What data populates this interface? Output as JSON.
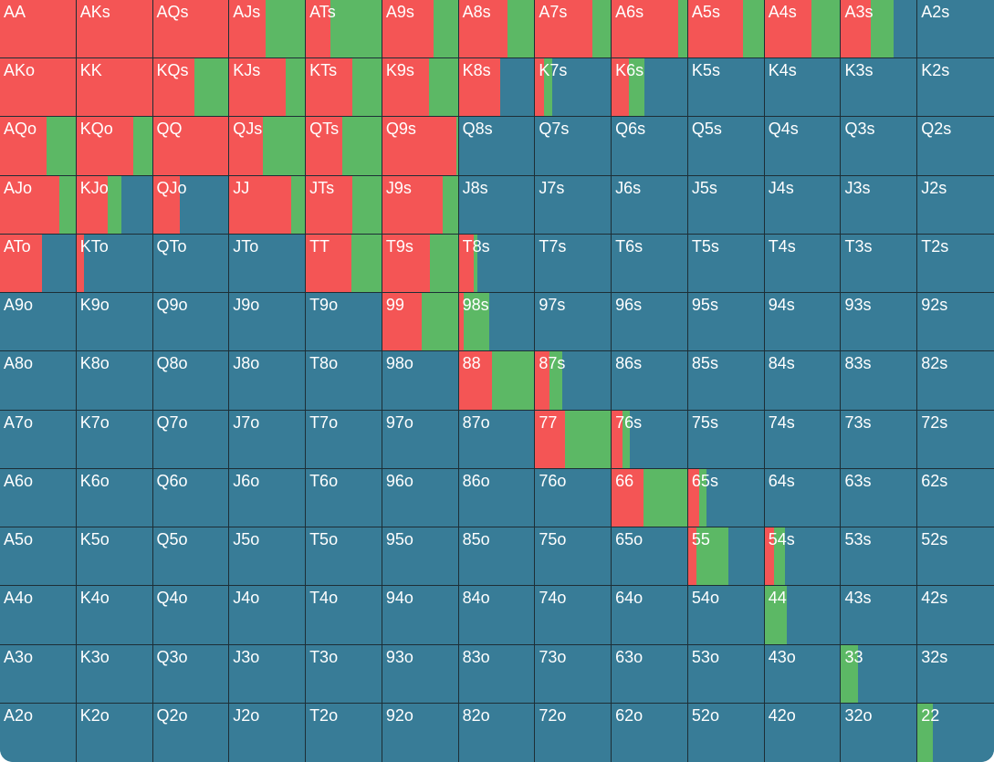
{
  "colors": {
    "raise": "#f45555",
    "call": "#5cb865",
    "fold": "#387c97"
  },
  "hands": [
    [
      "AA",
      "AKs",
      "AQs",
      "AJs",
      "ATs",
      "A9s",
      "A8s",
      "A7s",
      "A6s",
      "A5s",
      "A4s",
      "A3s",
      "A2s"
    ],
    [
      "AKo",
      "KK",
      "KQs",
      "KJs",
      "KTs",
      "K9s",
      "K8s",
      "K7s",
      "K6s",
      "K5s",
      "K4s",
      "K3s",
      "K2s"
    ],
    [
      "AQo",
      "KQo",
      "QQ",
      "QJs",
      "QTs",
      "Q9s",
      "Q8s",
      "Q7s",
      "Q6s",
      "Q5s",
      "Q4s",
      "Q3s",
      "Q2s"
    ],
    [
      "AJo",
      "KJo",
      "QJo",
      "JJ",
      "JTs",
      "J9s",
      "J8s",
      "J7s",
      "J6s",
      "J5s",
      "J4s",
      "J3s",
      "J2s"
    ],
    [
      "ATo",
      "KTo",
      "QTo",
      "JTo",
      "TT",
      "T9s",
      "T8s",
      "T7s",
      "T6s",
      "T5s",
      "T4s",
      "T3s",
      "T2s"
    ],
    [
      "A9o",
      "K9o",
      "Q9o",
      "J9o",
      "T9o",
      "99",
      "98s",
      "97s",
      "96s",
      "95s",
      "94s",
      "93s",
      "92s"
    ],
    [
      "A8o",
      "K8o",
      "Q8o",
      "J8o",
      "T8o",
      "98o",
      "88",
      "87s",
      "86s",
      "85s",
      "84s",
      "83s",
      "82s"
    ],
    [
      "A7o",
      "K7o",
      "Q7o",
      "J7o",
      "T7o",
      "97o",
      "87o",
      "77",
      "76s",
      "75s",
      "74s",
      "73s",
      "72s"
    ],
    [
      "A6o",
      "K6o",
      "Q6o",
      "J6o",
      "T6o",
      "96o",
      "86o",
      "76o",
      "66",
      "65s",
      "64s",
      "63s",
      "62s"
    ],
    [
      "A5o",
      "K5o",
      "Q5o",
      "J5o",
      "T5o",
      "95o",
      "85o",
      "75o",
      "65o",
      "55",
      "54s",
      "53s",
      "52s"
    ],
    [
      "A4o",
      "K4o",
      "Q4o",
      "J4o",
      "T4o",
      "94o",
      "84o",
      "74o",
      "64o",
      "54o",
      "44",
      "43s",
      "42s"
    ],
    [
      "A3o",
      "K3o",
      "Q3o",
      "J3o",
      "T3o",
      "93o",
      "83o",
      "73o",
      "63o",
      "53o",
      "43o",
      "33",
      "32s"
    ],
    [
      "A2o",
      "K2o",
      "Q2o",
      "J2o",
      "T2o",
      "92o",
      "82o",
      "72o",
      "62o",
      "52o",
      "42o",
      "32o",
      "22"
    ]
  ],
  "frequencies": {
    "AA": {
      "raise": 1.0,
      "call": 0.0
    },
    "AKs": {
      "raise": 1.0,
      "call": 0.0
    },
    "AQs": {
      "raise": 1.0,
      "call": 0.0
    },
    "AJs": {
      "raise": 0.48,
      "call": 0.52
    },
    "ATs": {
      "raise": 0.33,
      "call": 0.67
    },
    "A9s": {
      "raise": 0.68,
      "call": 0.32
    },
    "A8s": {
      "raise": 0.65,
      "call": 0.35
    },
    "A7s": {
      "raise": 0.76,
      "call": 0.24
    },
    "A6s": {
      "raise": 0.88,
      "call": 0.12
    },
    "A5s": {
      "raise": 0.73,
      "call": 0.27
    },
    "A4s": {
      "raise": 0.62,
      "call": 0.38
    },
    "A3s": {
      "raise": 0.39,
      "call": 0.3
    },
    "A2s": {
      "raise": 0.0,
      "call": 0.0
    },
    "AKo": {
      "raise": 1.0,
      "call": 0.0
    },
    "KK": {
      "raise": 1.0,
      "call": 0.0
    },
    "KQs": {
      "raise": 0.55,
      "call": 0.45
    },
    "KJs": {
      "raise": 0.74,
      "call": 0.26
    },
    "KTs": {
      "raise": 0.62,
      "call": 0.38
    },
    "K9s": {
      "raise": 0.62,
      "call": 0.38
    },
    "K8s": {
      "raise": 0.55,
      "call": 0.0
    },
    "K7s": {
      "raise": 0.12,
      "call": 0.1
    },
    "K6s": {
      "raise": 0.23,
      "call": 0.2
    },
    "K5s": {
      "raise": 0.0,
      "call": 0.0
    },
    "K4s": {
      "raise": 0.0,
      "call": 0.0
    },
    "K3s": {
      "raise": 0.0,
      "call": 0.0
    },
    "K2s": {
      "raise": 0.0,
      "call": 0.0
    },
    "AQo": {
      "raise": 0.62,
      "call": 0.38
    },
    "KQo": {
      "raise": 0.75,
      "call": 0.25
    },
    "QQ": {
      "raise": 1.0,
      "call": 0.0
    },
    "QJs": {
      "raise": 0.44,
      "call": 0.56
    },
    "QTs": {
      "raise": 0.48,
      "call": 0.52
    },
    "Q9s": {
      "raise": 0.98,
      "call": 0.02
    },
    "Q8s": {
      "raise": 0.0,
      "call": 0.0
    },
    "Q7s": {
      "raise": 0.0,
      "call": 0.0
    },
    "Q6s": {
      "raise": 0.0,
      "call": 0.0
    },
    "Q5s": {
      "raise": 0.0,
      "call": 0.0
    },
    "Q4s": {
      "raise": 0.0,
      "call": 0.0
    },
    "Q3s": {
      "raise": 0.0,
      "call": 0.0
    },
    "Q2s": {
      "raise": 0.0,
      "call": 0.0
    },
    "AJo": {
      "raise": 0.78,
      "call": 0.22
    },
    "KJo": {
      "raise": 0.41,
      "call": 0.19
    },
    "QJo": {
      "raise": 0.36,
      "call": 0.0
    },
    "JJ": {
      "raise": 0.82,
      "call": 0.18
    },
    "JTs": {
      "raise": 0.61,
      "call": 0.39
    },
    "J9s": {
      "raise": 0.8,
      "call": 0.2
    },
    "J8s": {
      "raise": 0.0,
      "call": 0.0
    },
    "J7s": {
      "raise": 0.0,
      "call": 0.0
    },
    "J6s": {
      "raise": 0.0,
      "call": 0.0
    },
    "J5s": {
      "raise": 0.0,
      "call": 0.0
    },
    "J4s": {
      "raise": 0.0,
      "call": 0.0
    },
    "J3s": {
      "raise": 0.0,
      "call": 0.0
    },
    "J2s": {
      "raise": 0.0,
      "call": 0.0
    },
    "ATo": {
      "raise": 0.55,
      "call": 0.0
    },
    "KTo": {
      "raise": 0.1,
      "call": 0.0
    },
    "QTo": {
      "raise": 0.0,
      "call": 0.0
    },
    "JTo": {
      "raise": 0.0,
      "call": 0.0
    },
    "TT": {
      "raise": 0.6,
      "call": 0.4
    },
    "T9s": {
      "raise": 0.63,
      "call": 0.37
    },
    "T8s": {
      "raise": 0.2,
      "call": 0.05
    },
    "T7s": {
      "raise": 0.0,
      "call": 0.0
    },
    "T6s": {
      "raise": 0.0,
      "call": 0.0
    },
    "T5s": {
      "raise": 0.0,
      "call": 0.0
    },
    "T4s": {
      "raise": 0.0,
      "call": 0.0
    },
    "T3s": {
      "raise": 0.0,
      "call": 0.0
    },
    "T2s": {
      "raise": 0.0,
      "call": 0.0
    },
    "99": {
      "raise": 0.52,
      "call": 0.48
    },
    "98s": {
      "raise": 0.07,
      "call": 0.33
    },
    "88": {
      "raise": 0.44,
      "call": 0.56
    },
    "87s": {
      "raise": 0.19,
      "call": 0.17
    },
    "77": {
      "raise": 0.39,
      "call": 0.61
    },
    "76s": {
      "raise": 0.14,
      "call": 0.1
    },
    "66": {
      "raise": 0.42,
      "call": 0.58
    },
    "65s": {
      "raise": 0.14,
      "call": 0.1
    },
    "55": {
      "raise": 0.11,
      "call": 0.42
    },
    "54s": {
      "raise": 0.13,
      "call": 0.14
    },
    "44": {
      "raise": 0.0,
      "call": 0.29
    },
    "33": {
      "raise": 0.0,
      "call": 0.22
    },
    "22": {
      "raise": 0.0,
      "call": 0.2
    }
  }
}
